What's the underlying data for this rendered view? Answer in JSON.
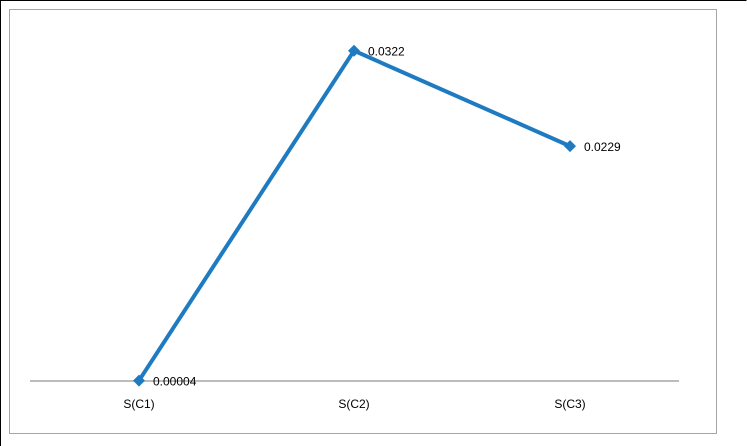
{
  "chart_data": {
    "type": "line",
    "categories": [
      "S(C1)",
      "S(C2)",
      "S(C3)"
    ],
    "series": [
      {
        "values": [
          4e-05,
          0.0322,
          0.0229
        ],
        "data_labels": [
          "0.00004",
          "0.0322",
          "0.0229"
        ]
      }
    ],
    "title": "",
    "xlabel": "",
    "ylabel": "",
    "ylim": [
      0,
      0.035
    ],
    "grid": false,
    "legend": "none",
    "marker": "diamond"
  },
  "colors": {
    "series": "#1f7bc1",
    "axis": "#a6a6a6",
    "border": "#a6a6a6"
  }
}
